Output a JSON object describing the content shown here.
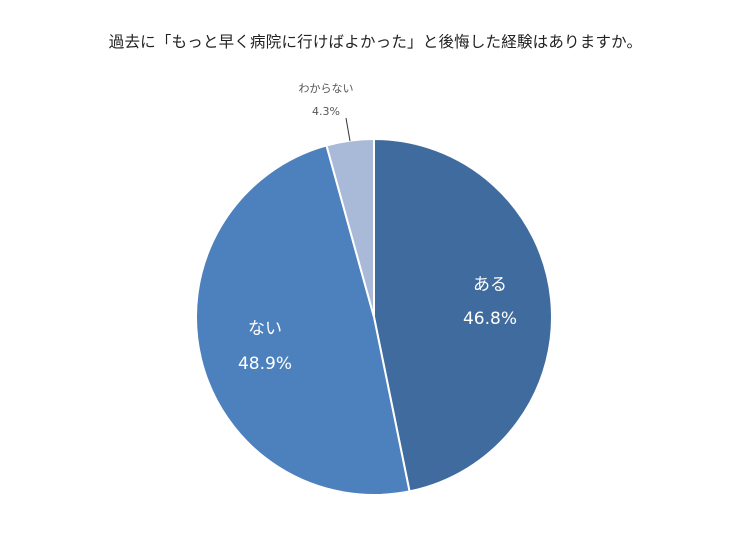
{
  "chart_data": {
    "type": "pie",
    "title": "過去に「もっと早く病院に行けばよかった」と後悔した経験はありますか。",
    "slices": [
      {
        "label": "ある",
        "value": 46.8,
        "value_label": "46.8%",
        "color": "#3f6b9e"
      },
      {
        "label": "ない",
        "value": 48.9,
        "value_label": "48.9%",
        "color": "#4d81bd"
      },
      {
        "label": "わからない",
        "value": 4.3,
        "value_label": "4.3%",
        "color": "#a9b9d8"
      }
    ],
    "start_angle_deg": 0,
    "direction": "clockwise",
    "label_colors": {
      "inside": "#ffffff",
      "outside": "#555555"
    }
  }
}
